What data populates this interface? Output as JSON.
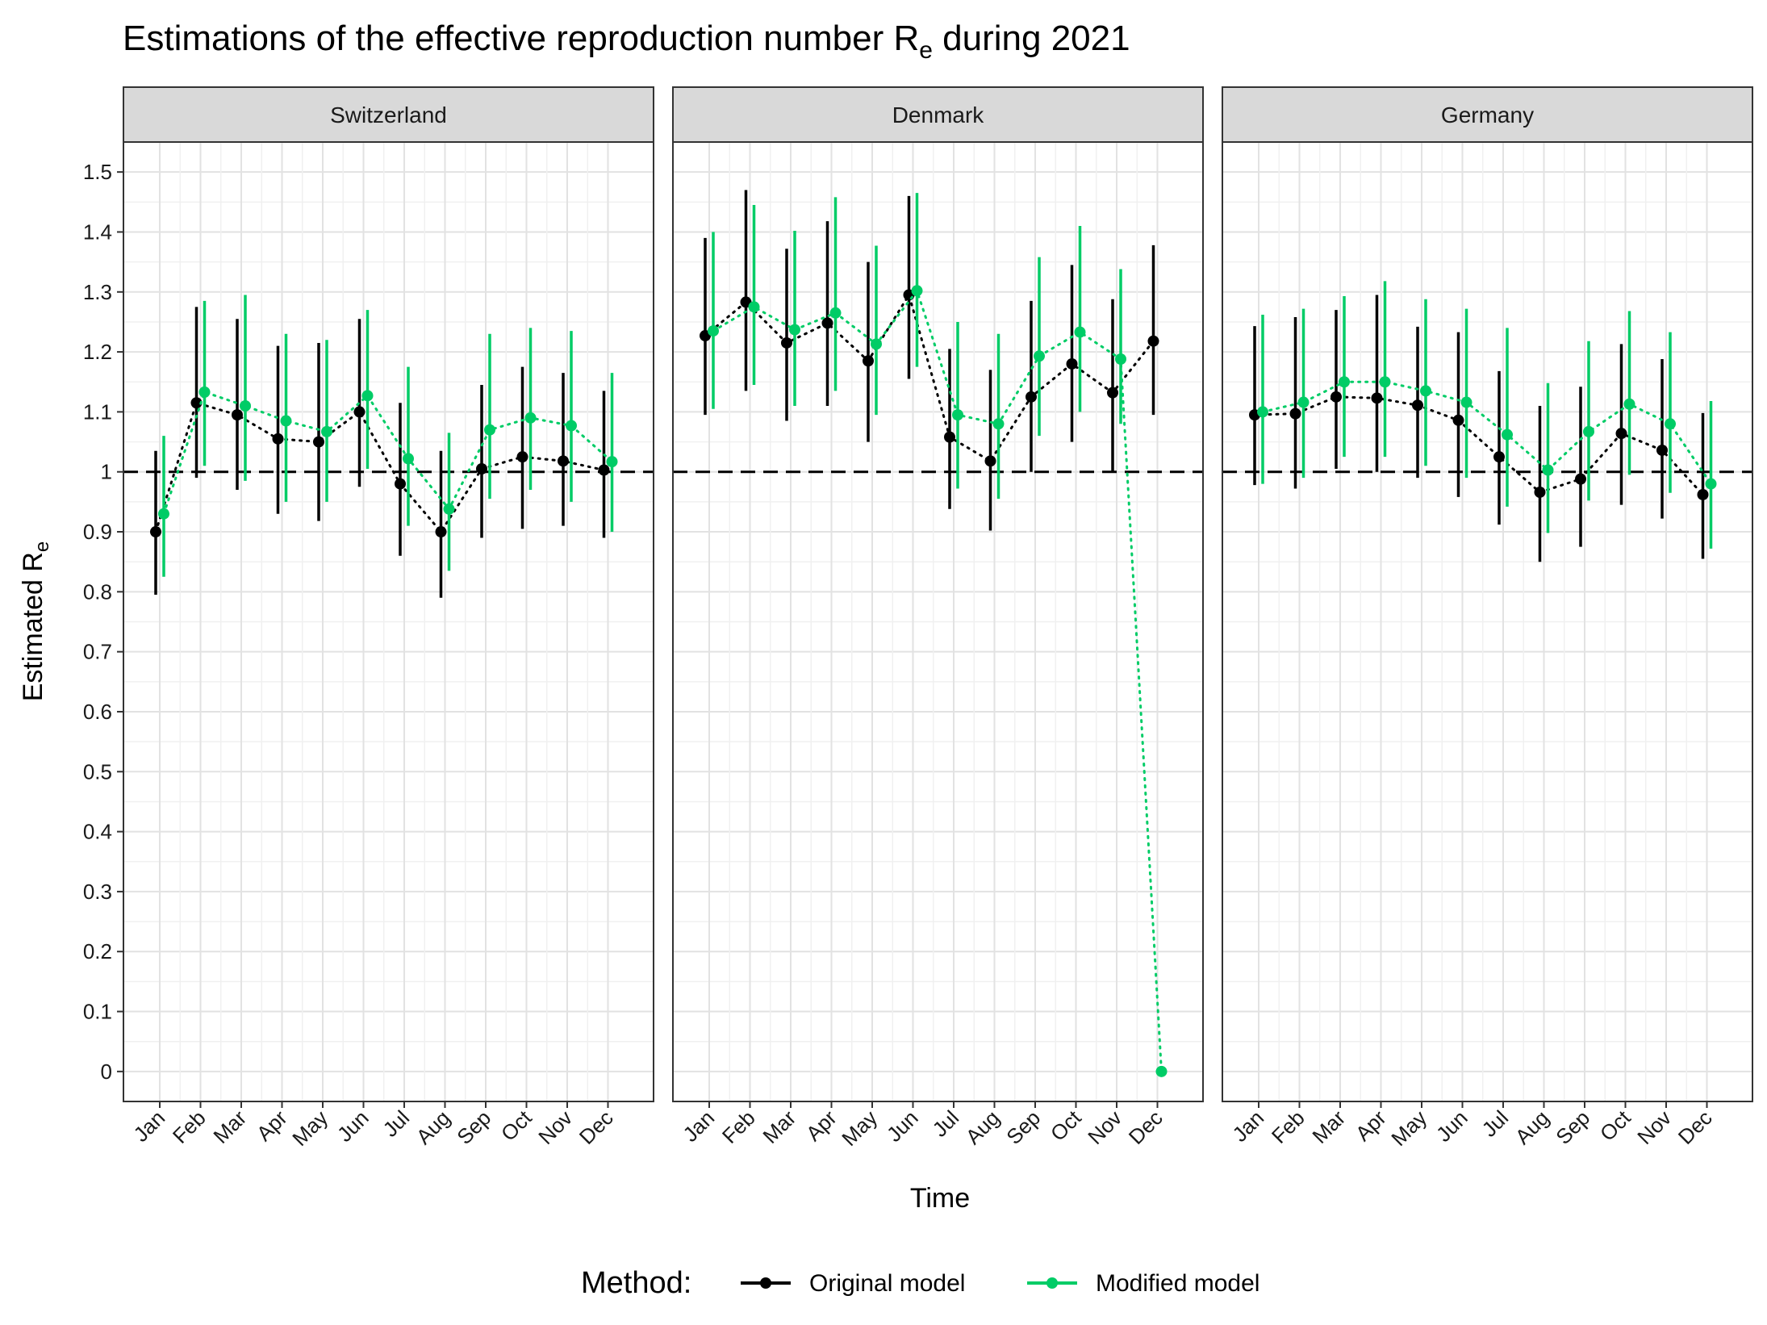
{
  "chart_data": {
    "type": "scatter",
    "title_prefix": "Estimations of the effective reproduction number R",
    "title_sub": "e",
    "title_suffix": " during 2021",
    "ylabel_prefix": "Estimated R",
    "ylabel_sub": "e",
    "xlabel": "Time",
    "ylim": [
      -0.05,
      1.55
    ],
    "yticks": [
      "0",
      "0.1",
      "0.2",
      "0.3",
      "0.4",
      "0.5",
      "0.6",
      "0.7",
      "0.8",
      "0.9",
      "1",
      "1.1",
      "1.2",
      "1.3",
      "1.4",
      "1.5"
    ],
    "categories": [
      "Jan",
      "Feb",
      "Mar",
      "Apr",
      "May",
      "Jun",
      "Jul",
      "Aug",
      "Sep",
      "Oct",
      "Nov",
      "Dec"
    ],
    "reference_line": 1,
    "grid": true,
    "legend": {
      "title": "Method:",
      "position": "bottom",
      "entries": [
        "Original model",
        "Modified model"
      ]
    },
    "colors": {
      "Original model": "#000000",
      "Modified model": "#00cc66"
    },
    "panels": [
      {
        "name": "Switzerland",
        "series": [
          {
            "name": "Original model",
            "values": [
              0.9,
              1.115,
              1.095,
              1.055,
              1.05,
              1.1,
              0.98,
              0.9,
              1.005,
              1.025,
              1.018,
              1.003
            ],
            "lower": [
              0.795,
              0.99,
              0.97,
              0.93,
              0.918,
              0.975,
              0.86,
              0.79,
              0.89,
              0.905,
              0.91,
              0.89
            ],
            "upper": [
              1.035,
              1.275,
              1.255,
              1.21,
              1.215,
              1.255,
              1.115,
              1.035,
              1.145,
              1.175,
              1.165,
              1.135
            ]
          },
          {
            "name": "Modified model",
            "values": [
              0.93,
              1.133,
              1.11,
              1.085,
              1.067,
              1.127,
              1.022,
              0.938,
              1.07,
              1.09,
              1.077,
              1.017
            ],
            "lower": [
              0.825,
              1.01,
              0.985,
              0.95,
              0.95,
              1.005,
              0.91,
              0.835,
              0.955,
              0.97,
              0.95,
              0.9
            ],
            "upper": [
              1.06,
              1.285,
              1.295,
              1.23,
              1.22,
              1.27,
              1.175,
              1.065,
              1.23,
              1.24,
              1.235,
              1.165
            ]
          }
        ]
      },
      {
        "name": "Denmark",
        "series": [
          {
            "name": "Original model",
            "values": [
              1.227,
              1.283,
              1.215,
              1.248,
              1.185,
              1.295,
              1.058,
              1.018,
              1.125,
              1.18,
              1.132,
              1.218
            ],
            "lower": [
              1.095,
              1.135,
              1.085,
              1.11,
              1.05,
              1.155,
              0.938,
              0.902,
              1.0,
              1.05,
              1.0,
              1.095
            ],
            "upper": [
              1.39,
              1.47,
              1.372,
              1.418,
              1.35,
              1.46,
              1.205,
              1.17,
              1.285,
              1.345,
              1.288,
              1.378
            ]
          },
          {
            "name": "Modified model",
            "values": [
              1.235,
              1.275,
              1.237,
              1.265,
              1.213,
              1.302,
              1.095,
              1.08,
              1.193,
              1.233,
              1.188,
              0.0
            ],
            "lower": [
              1.105,
              1.145,
              1.11,
              1.135,
              1.095,
              1.175,
              0.972,
              0.955,
              1.06,
              1.1,
              1.08,
              0.0
            ],
            "upper": [
              1.4,
              1.445,
              1.402,
              1.458,
              1.377,
              1.465,
              1.25,
              1.23,
              1.358,
              1.41,
              1.338,
              0.0
            ]
          }
        ]
      },
      {
        "name": "Germany",
        "series": [
          {
            "name": "Original model",
            "values": [
              1.095,
              1.097,
              1.125,
              1.123,
              1.111,
              1.086,
              1.025,
              0.966,
              0.988,
              1.064,
              1.036,
              0.962
            ],
            "lower": [
              0.978,
              0.972,
              1.005,
              1.0,
              0.99,
              0.958,
              0.912,
              0.85,
              0.875,
              0.945,
              0.922,
              0.855
            ],
            "upper": [
              1.243,
              1.258,
              1.27,
              1.295,
              1.242,
              1.233,
              1.168,
              1.11,
              1.142,
              1.213,
              1.188,
              1.098
            ]
          },
          {
            "name": "Modified model",
            "values": [
              1.1,
              1.116,
              1.15,
              1.15,
              1.135,
              1.116,
              1.062,
              1.003,
              1.067,
              1.113,
              1.08,
              0.98
            ],
            "lower": [
              0.98,
              0.99,
              1.025,
              1.025,
              1.01,
              0.99,
              0.942,
              0.898,
              0.952,
              0.995,
              0.965,
              0.872
            ],
            "upper": [
              1.262,
              1.272,
              1.293,
              1.318,
              1.288,
              1.272,
              1.24,
              1.148,
              1.218,
              1.268,
              1.233,
              1.118
            ]
          }
        ]
      }
    ]
  }
}
